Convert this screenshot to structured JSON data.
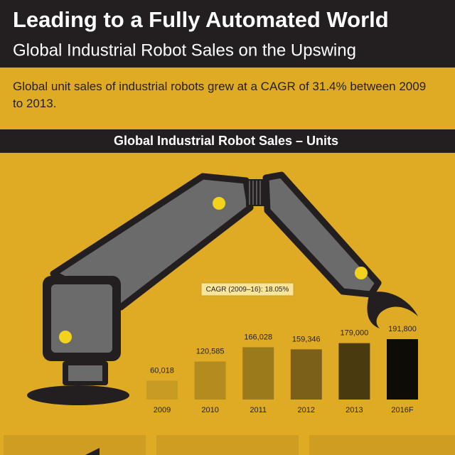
{
  "header": {
    "title": "Leading to a Fully Automated World",
    "subtitle": "Global Industrial Robot Sales on the Upswing"
  },
  "description": "Global unit sales of industrial robots grew at a CAGR of 31.4% between 2009 to 2013.",
  "chart_data": {
    "type": "bar",
    "title": "Global Industrial Robot Sales – Units",
    "annotation": "CAGR (2009–16): 18.05%",
    "categories": [
      "2009",
      "2010",
      "2011",
      "2012",
      "2013",
      "2016F"
    ],
    "values": [
      60018,
      120585,
      166028,
      159346,
      179000,
      191800
    ],
    "value_labels": [
      "60,018",
      "120,585",
      "166,028",
      "159,346",
      "179,000",
      "191,800"
    ],
    "colors": [
      "#c89c22",
      "#b38c1f",
      "#9b7a1c",
      "#7a6018",
      "#4a3a10",
      "#0e0c06"
    ]
  }
}
